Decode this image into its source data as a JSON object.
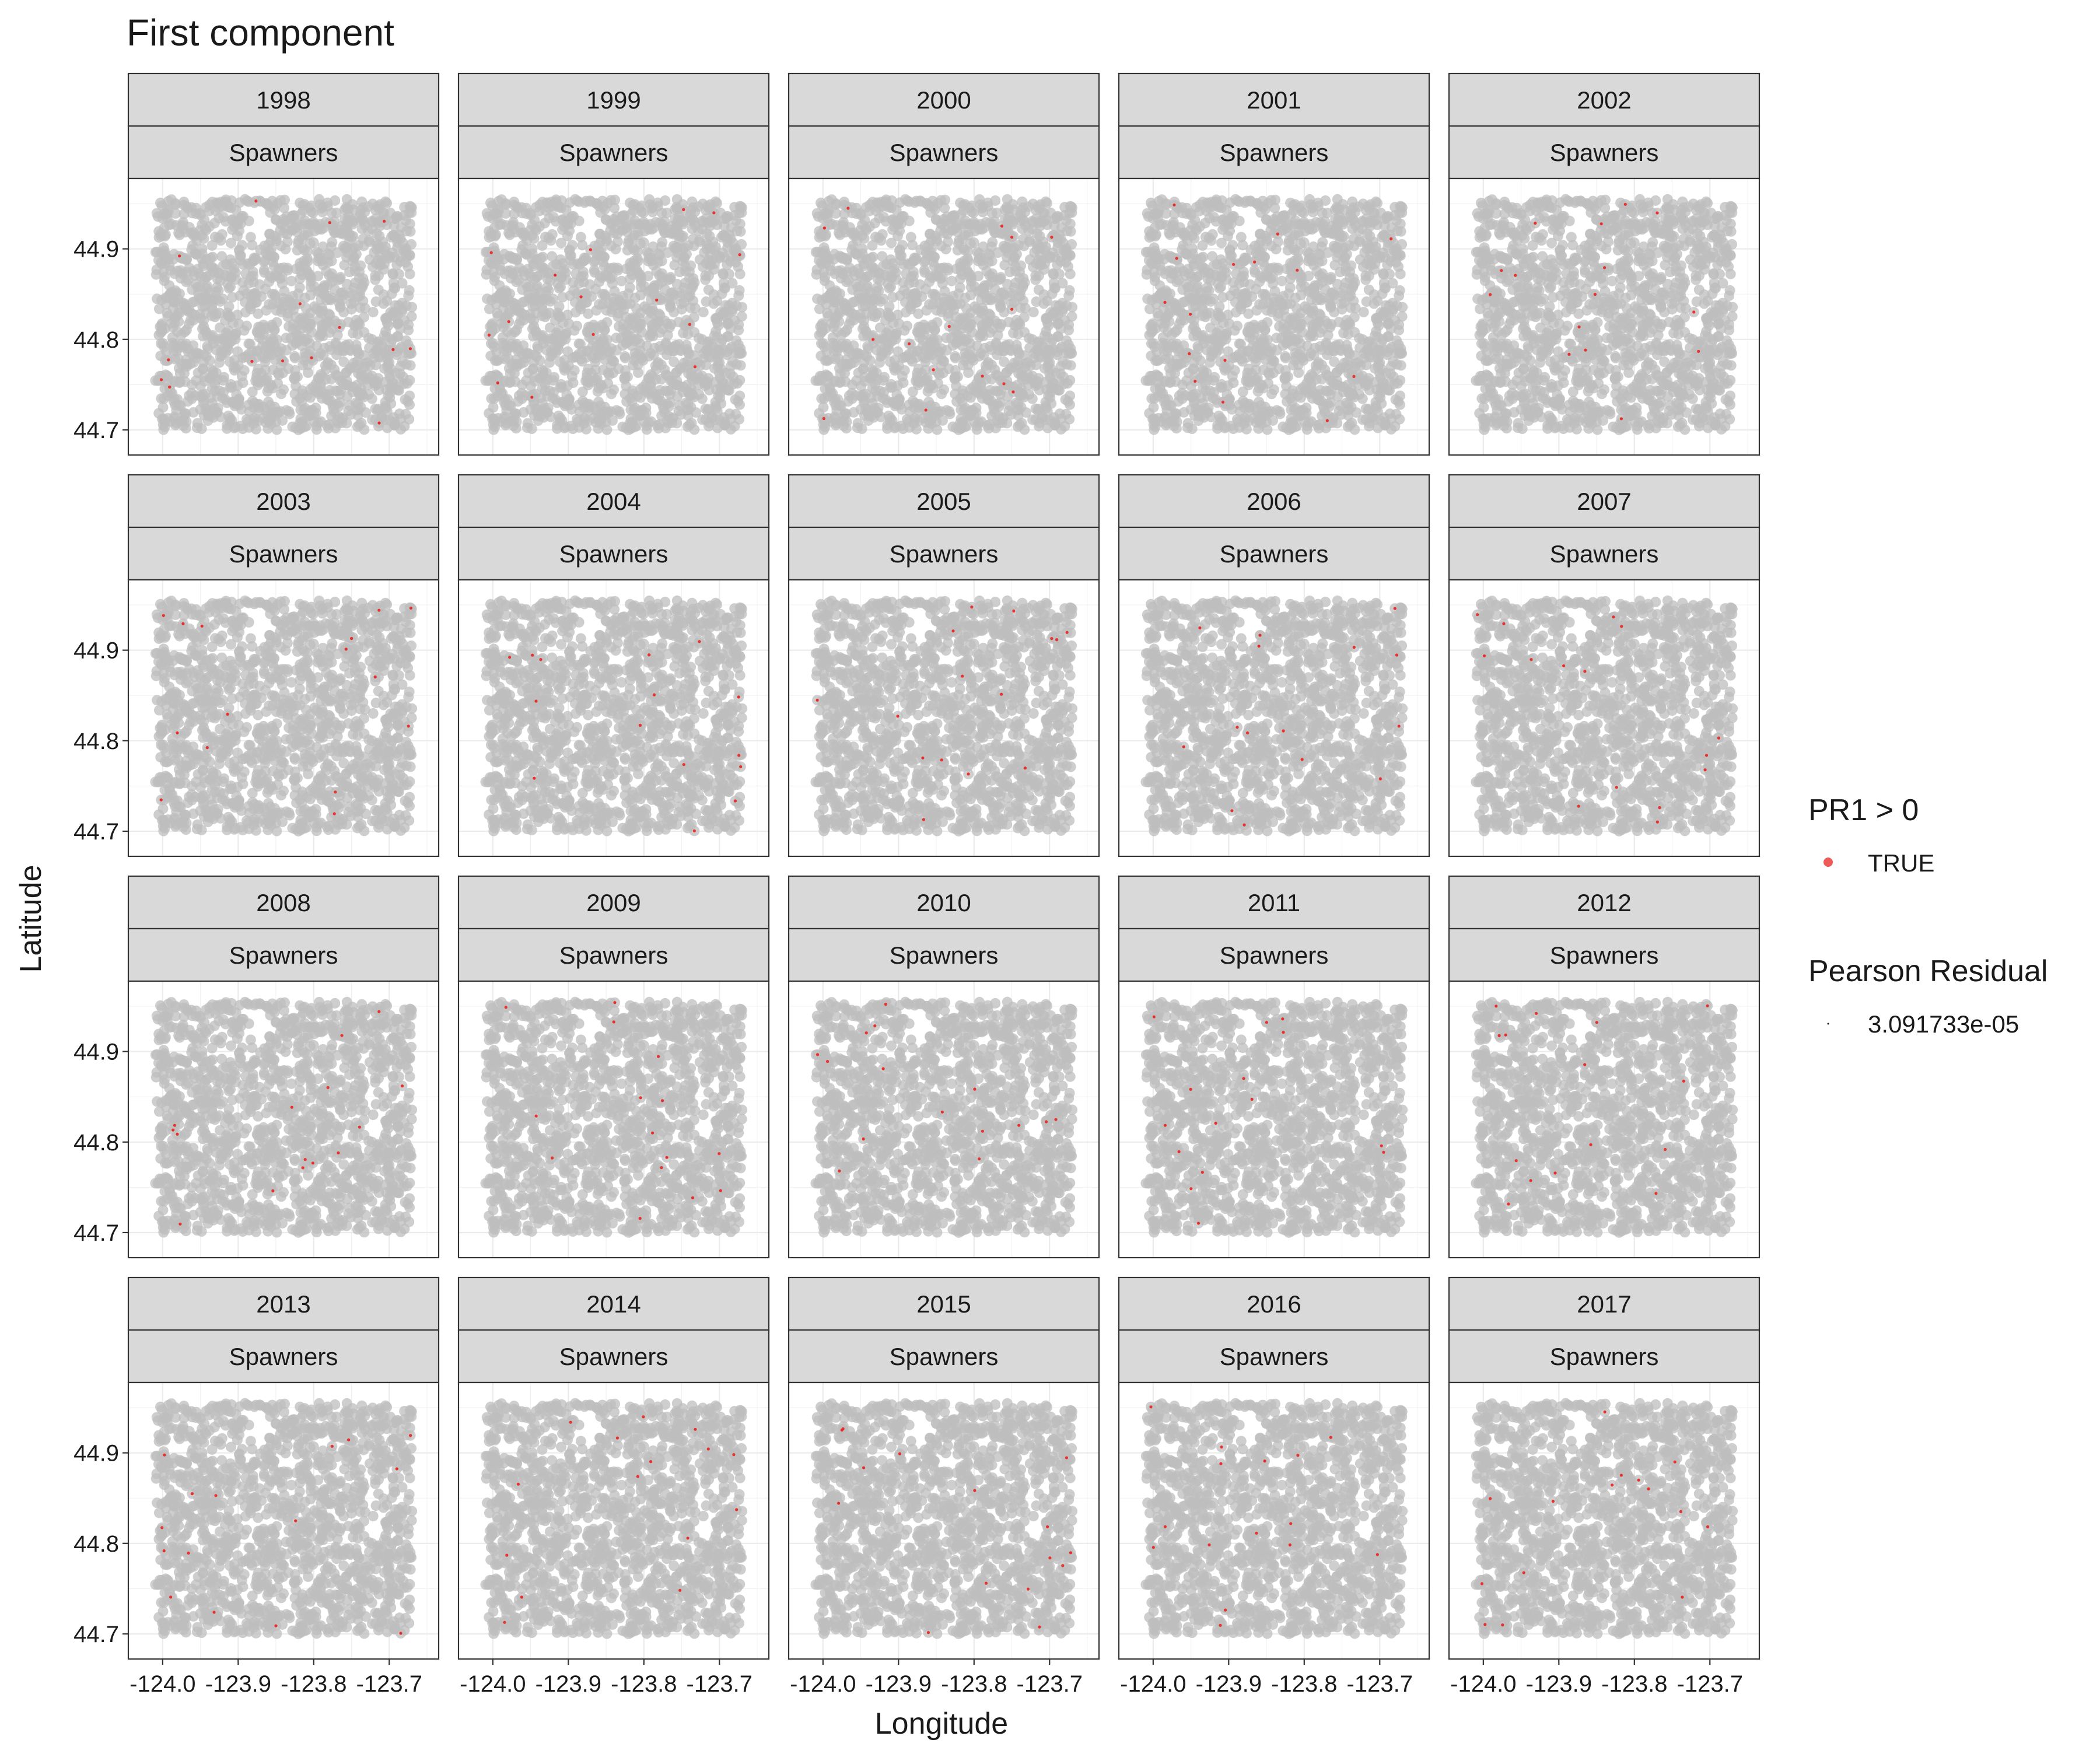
{
  "chart_data": {
    "type": "scatter",
    "title": "First component",
    "xlabel": "Longitude",
    "ylabel": "Latitude",
    "facet_row_label": "Spawners",
    "facets": [
      "1998",
      "1999",
      "2000",
      "2001",
      "2002",
      "2003",
      "2004",
      "2005",
      "2006",
      "2007",
      "2008",
      "2009",
      "2010",
      "2011",
      "2012",
      "2013",
      "2014",
      "2015",
      "2016",
      "2017"
    ],
    "ncol": 5,
    "x_ticks": [
      -124.0,
      -123.9,
      -123.8,
      -123.7
    ],
    "x_tick_labels": [
      "-124.0",
      "-123.9",
      "-123.8",
      "-123.7"
    ],
    "y_ticks": [
      44.7,
      44.8,
      44.9
    ],
    "y_tick_labels": [
      "44.7",
      "44.8",
      "44.9"
    ],
    "xlim": [
      -124.03,
      -123.65
    ],
    "ylim": [
      44.68,
      44.97
    ],
    "grid": true,
    "points_per_panel": 1500,
    "highlighted_per_panel": 15,
    "point_color": "#bdbdbd",
    "highlight_color": "#e8312f",
    "legend": {
      "position": "right",
      "color_title": "PR1 > 0",
      "color_entries": [
        "TRUE"
      ],
      "size_title": "Pearson Residual",
      "size_entries": [
        "3.091733e-05"
      ]
    }
  }
}
